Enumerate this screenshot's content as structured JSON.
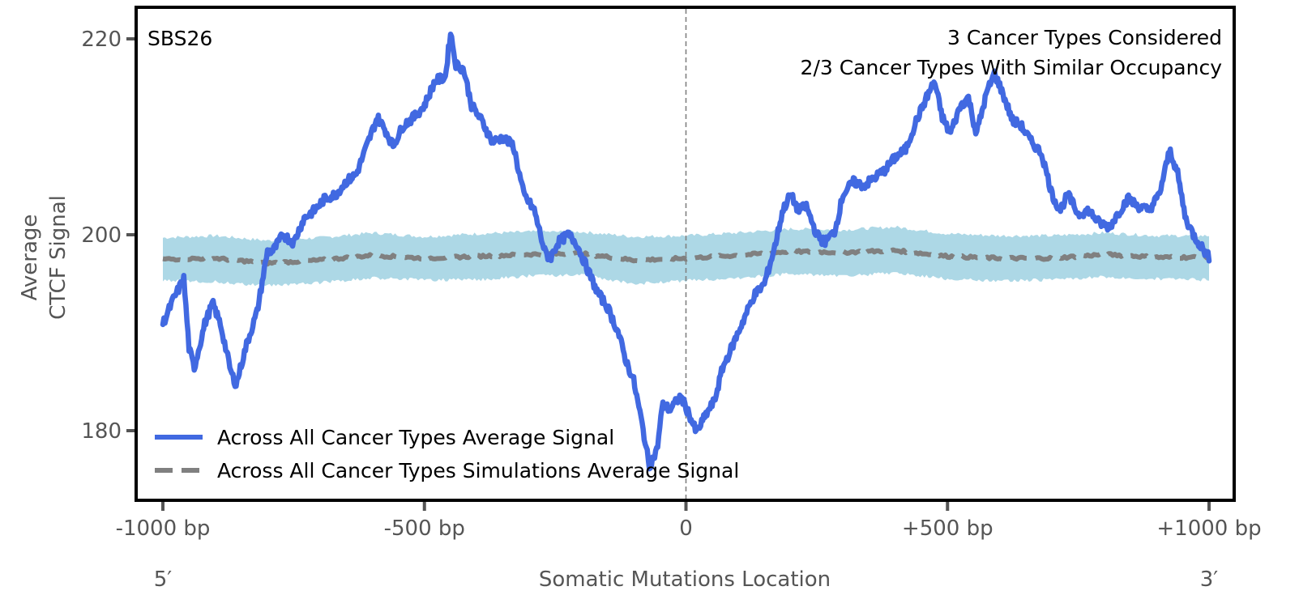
{
  "chart_data": {
    "type": "line",
    "title": "",
    "xlabel": "Somatic Mutations Location",
    "ylabel_lines": [
      "Average",
      "CTCF Signal"
    ],
    "xlim": [
      -1050,
      1050
    ],
    "ylim": [
      173.6,
      223.3
    ],
    "grid": false,
    "x_ticks": [
      -1000,
      -500,
      0,
      500,
      1000
    ],
    "x_tick_labels": [
      "-1000 bp",
      "-500 bp",
      "0",
      "+500 bp",
      "+1000 bp"
    ],
    "y_ticks": [
      180,
      200,
      220
    ],
    "y_tick_labels": [
      "180",
      "200",
      "220"
    ],
    "end_labels": {
      "left": "5′",
      "right": "3′"
    },
    "annotations": {
      "signature": "SBS26",
      "line1": "3 Cancer Types Considered",
      "line2": "2/3 Cancer Types With Similar Occupancy"
    },
    "center_line_x": 0,
    "legend_position": "lower-left",
    "series": [
      {
        "name": "Across All Cancer Types Average Signal",
        "color": "#4169e1",
        "style": "solid",
        "x": [
          -1000,
          -980,
          -960,
          -950,
          -940,
          -920,
          -905,
          -890,
          -870,
          -860,
          -840,
          -820,
          -800,
          -790,
          -770,
          -750,
          -730,
          -710,
          -690,
          -670,
          -650,
          -630,
          -610,
          -590,
          -575,
          -560,
          -540,
          -520,
          -500,
          -480,
          -460,
          -450,
          -440,
          -425,
          -410,
          -390,
          -370,
          -350,
          -330,
          -310,
          -290,
          -270,
          -260,
          -245,
          -225,
          -210,
          -190,
          -170,
          -150,
          -130,
          -115,
          -100,
          -85,
          -70,
          -55,
          -45,
          -30,
          -10,
          5,
          20,
          40,
          55,
          70,
          90,
          110,
          130,
          150,
          170,
          185,
          200,
          215,
          230,
          250,
          265,
          285,
          300,
          320,
          340,
          360,
          380,
          400,
          420,
          440,
          460,
          475,
          490,
          505,
          525,
          540,
          555,
          575,
          590,
          605,
          625,
          640,
          660,
          680,
          700,
          715,
          730,
          750,
          770,
          790,
          810,
          825,
          845,
          865,
          885,
          905,
          925,
          940,
          955,
          970,
          985,
          1000
        ],
        "y": [
          190.9,
          193.4,
          195.5,
          188.4,
          186.4,
          190.9,
          193.0,
          190.9,
          186.0,
          184.7,
          188.8,
          192.1,
          198.3,
          198.3,
          200.0,
          199.2,
          201.7,
          202.5,
          203.7,
          204.1,
          205.4,
          206.2,
          209.1,
          212.0,
          210.7,
          209.1,
          211.2,
          212.0,
          213.2,
          215.7,
          216.1,
          220.7,
          217.4,
          216.9,
          213.2,
          211.6,
          209.5,
          209.9,
          209.1,
          204.1,
          202.5,
          198.3,
          197.5,
          199.2,
          200.0,
          199.2,
          196.7,
          194.2,
          192.6,
          190.1,
          187.2,
          185.1,
          181.0,
          176.4,
          178.1,
          182.6,
          182.2,
          183.5,
          181.8,
          179.8,
          181.8,
          183.1,
          186.4,
          188.8,
          191.3,
          193.8,
          195.0,
          198.8,
          202.5,
          204.1,
          202.5,
          202.9,
          200.0,
          199.2,
          200.4,
          204.1,
          205.4,
          205.0,
          205.8,
          206.6,
          207.9,
          208.7,
          211.6,
          214.0,
          215.7,
          212.0,
          210.3,
          213.2,
          214.0,
          210.3,
          214.5,
          216.5,
          214.5,
          211.6,
          211.2,
          209.5,
          208.3,
          204.1,
          202.5,
          204.1,
          202.1,
          202.5,
          201.2,
          200.8,
          202.1,
          203.7,
          202.9,
          202.5,
          204.1,
          208.7,
          206.2,
          201.7,
          200.0,
          198.8,
          197.7
        ]
      },
      {
        "name": "Across All Cancer Types Simulations Average Signal",
        "color": "#808080",
        "style": "dashed",
        "x": [
          -1000,
          -900,
          -800,
          -700,
          -600,
          -500,
          -400,
          -300,
          -200,
          -100,
          0,
          100,
          200,
          300,
          400,
          500,
          600,
          700,
          800,
          900,
          1000
        ],
        "y": [
          197.5,
          197.6,
          197.1,
          197.4,
          197.9,
          197.6,
          197.8,
          198.0,
          198.1,
          197.4,
          197.6,
          197.9,
          198.3,
          198.2,
          198.4,
          197.8,
          197.6,
          197.6,
          198.0,
          197.7,
          197.7
        ]
      }
    ],
    "band": {
      "name": "Simulations range",
      "color": "#add8e6",
      "x": [
        -1000,
        -900,
        -800,
        -700,
        -600,
        -500,
        -400,
        -300,
        -200,
        -100,
        0,
        100,
        200,
        300,
        400,
        500,
        600,
        700,
        800,
        900,
        1000
      ],
      "lower": [
        195.3,
        195.2,
        194.8,
        195.1,
        195.6,
        195.4,
        195.4,
        195.8,
        195.9,
        195.0,
        195.3,
        195.6,
        196.0,
        195.8,
        196.1,
        195.5,
        195.3,
        195.4,
        195.7,
        195.5,
        195.4
      ],
      "upper": [
        199.7,
        199.9,
        199.4,
        199.7,
        200.2,
        199.8,
        200.1,
        200.3,
        200.3,
        199.8,
        199.9,
        200.2,
        200.6,
        200.5,
        200.8,
        200.1,
        199.9,
        199.9,
        200.2,
        199.9,
        199.9
      ]
    }
  }
}
